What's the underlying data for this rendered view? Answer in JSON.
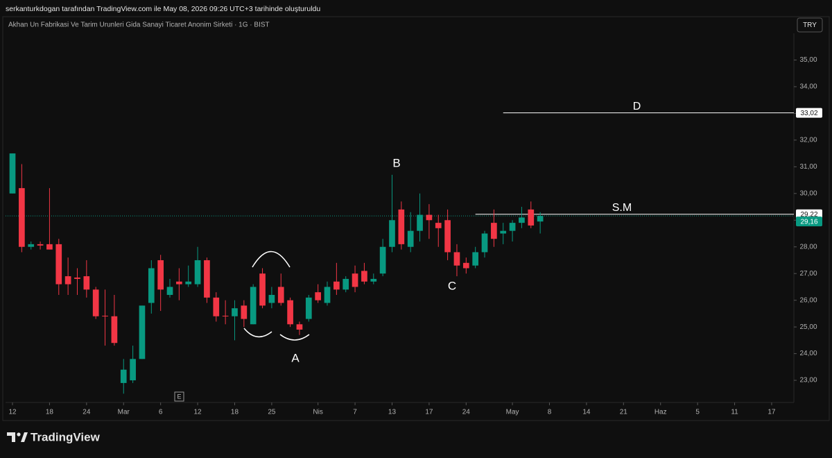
{
  "header": "serkanturkdogan tarafından TradingView.com ile May 08, 2026 09:26 UTC+3 tarihinde oluşturuldu",
  "chart_data": {
    "type": "candlestick",
    "title": "Akhan Un Fabrikasi Ve Tarim Urunleri Gida Sanayi Ticaret Anonim Sirketi · 1G · BIST",
    "currency": "TRY",
    "up_color": "#089981",
    "down_color": "#f23645",
    "xlim": [
      -0.75,
      84.4
    ],
    "ylim": [
      22.3,
      36.0
    ],
    "xticks": [
      {
        "value": 0,
        "label": "12"
      },
      {
        "value": 4,
        "label": "18"
      },
      {
        "value": 8,
        "label": "24"
      },
      {
        "value": 12,
        "label": "Mar"
      },
      {
        "value": 16,
        "label": "6"
      },
      {
        "value": 20,
        "label": "12"
      },
      {
        "value": 24,
        "label": "18"
      },
      {
        "value": 28,
        "label": "25"
      },
      {
        "value": 33,
        "label": "Nis"
      },
      {
        "value": 37,
        "label": "7"
      },
      {
        "value": 41,
        "label": "13"
      },
      {
        "value": 45,
        "label": "17"
      },
      {
        "value": 49,
        "label": "24"
      },
      {
        "value": 54,
        "label": "May"
      },
      {
        "value": 58,
        "label": "8"
      },
      {
        "value": 62,
        "label": "14"
      },
      {
        "value": 66,
        "label": "21"
      },
      {
        "value": 70,
        "label": "Haz"
      },
      {
        "value": 74,
        "label": "5"
      },
      {
        "value": 78,
        "label": "11"
      },
      {
        "value": 82,
        "label": "17"
      }
    ],
    "yticks": [
      {
        "value": 23,
        "label": "23,00"
      },
      {
        "value": 24,
        "label": "24,00"
      },
      {
        "value": 25,
        "label": "25,00"
      },
      {
        "value": 26,
        "label": "26,00"
      },
      {
        "value": 27,
        "label": "27,00"
      },
      {
        "value": 28,
        "label": "28,00"
      },
      {
        "value": 29,
        "label": "29,00"
      },
      {
        "value": 30,
        "label": "30,00"
      },
      {
        "value": 31,
        "label": "31,00"
      },
      {
        "value": 32,
        "label": "32,00"
      },
      {
        "value": 33,
        "label": "33,00"
      },
      {
        "value": 34,
        "label": "34,00"
      },
      {
        "value": 35,
        "label": "35,00"
      }
    ],
    "series": [
      {
        "x": [
          0,
          1,
          2,
          3,
          4,
          5,
          6,
          7,
          8,
          9,
          10,
          11,
          12,
          13,
          14,
          15,
          16,
          17,
          18,
          19,
          20,
          21,
          22,
          23,
          24,
          25,
          26,
          27,
          28,
          29,
          30,
          31,
          32,
          33,
          34,
          35,
          36,
          37,
          38,
          39,
          40,
          41,
          42,
          43,
          44,
          45,
          46,
          47,
          48,
          49,
          50,
          51,
          52,
          53,
          54,
          55,
          56,
          57
        ],
        "open": [
          30.0,
          30.2,
          28.0,
          28.1,
          28.1,
          28.1,
          26.9,
          26.85,
          26.9,
          26.4,
          25.42,
          25.4,
          22.9,
          23.0,
          23.8,
          25.9,
          27.5,
          26.2,
          26.7,
          26.6,
          26.6,
          27.5,
          26.1,
          25.42,
          25.4,
          25.8,
          25.1,
          27.0,
          25.9,
          26.5,
          26.0,
          25.1,
          25.3,
          26.3,
          25.9,
          26.7,
          26.4,
          27.0,
          27.1,
          26.7,
          27.0,
          28.0,
          29.4,
          28.0,
          28.6,
          29.2,
          28.9,
          29.0,
          27.8,
          27.4,
          27.3,
          27.8,
          28.9,
          28.5,
          28.6,
          28.9,
          29.4,
          28.95
        ],
        "high": [
          31.5,
          31.1,
          28.2,
          28.2,
          30.2,
          28.3,
          27.6,
          27.2,
          27.5,
          26.5,
          26.4,
          26.2,
          23.8,
          24.3,
          25.8,
          27.5,
          27.7,
          26.8,
          27.2,
          27.3,
          28.0,
          27.6,
          26.3,
          26.0,
          26.0,
          26.0,
          26.6,
          27.2,
          26.5,
          27.0,
          26.1,
          25.2,
          26.2,
          26.6,
          26.7,
          27.4,
          26.9,
          27.3,
          27.4,
          27.0,
          28.3,
          30.7,
          29.7,
          29.3,
          30.0,
          29.6,
          29.2,
          29.4,
          28.1,
          27.6,
          28.0,
          28.6,
          29.4,
          28.9,
          29.0,
          29.5,
          29.7,
          29.3
        ],
        "low": [
          30.0,
          27.8,
          27.9,
          27.9,
          27.9,
          26.2,
          26.2,
          26.2,
          26.1,
          25.3,
          24.3,
          24.3,
          22.5,
          22.9,
          23.8,
          25.5,
          25.6,
          26.1,
          26.0,
          26.5,
          26.5,
          25.9,
          25.2,
          25.1,
          24.5,
          25.0,
          25.1,
          25.7,
          25.7,
          25.8,
          25.0,
          24.7,
          25.2,
          25.9,
          25.8,
          26.2,
          26.3,
          26.3,
          26.6,
          26.6,
          26.9,
          27.8,
          27.9,
          27.8,
          28.2,
          28.3,
          28.0,
          27.5,
          26.9,
          27.0,
          27.2,
          27.6,
          28.0,
          28.1,
          28.2,
          28.7,
          28.7,
          28.5
        ],
        "close": [
          31.5,
          28.0,
          28.1,
          28.05,
          27.9,
          26.6,
          26.6,
          26.8,
          26.4,
          25.4,
          25.4,
          24.4,
          23.4,
          23.8,
          25.8,
          27.2,
          26.4,
          26.5,
          26.6,
          26.7,
          27.5,
          26.1,
          25.4,
          25.4,
          25.7,
          25.3,
          26.5,
          25.8,
          26.2,
          25.9,
          25.1,
          24.9,
          26.1,
          26.0,
          26.5,
          26.4,
          26.8,
          26.5,
          26.7,
          26.8,
          28.0,
          29.0,
          28.1,
          28.6,
          29.2,
          29.0,
          28.7,
          27.8,
          27.3,
          27.2,
          27.8,
          28.5,
          28.3,
          28.6,
          28.9,
          29.1,
          28.8,
          29.16
        ]
      }
    ],
    "levels": [
      {
        "name": "D",
        "value": 33.02,
        "value_label": "33,02",
        "from": 53
      },
      {
        "name": "S.M",
        "value": 29.22,
        "value_label": "29,22",
        "from": 50
      }
    ],
    "last_price": {
      "value": 29.16,
      "label": "29,16"
    },
    "annotations": [
      "A",
      "B",
      "C"
    ],
    "event_marker": "E"
  },
  "footer": {
    "logo": "TradingView"
  }
}
